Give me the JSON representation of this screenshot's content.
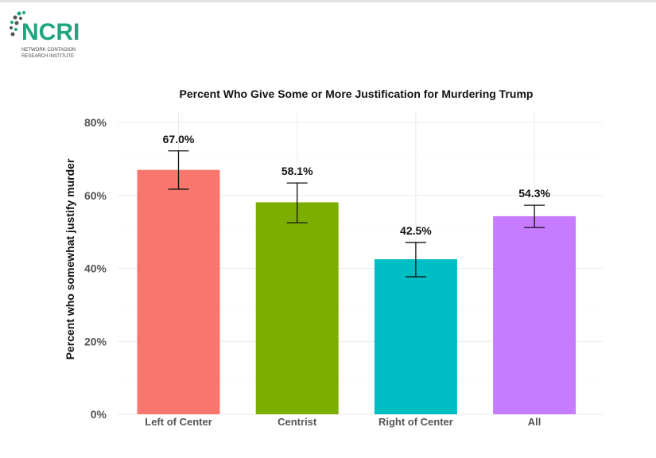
{
  "logo": {
    "text": "NCRI",
    "subtitle_line1": "NETWORK CONTAGION",
    "subtitle_line2": "RESEARCH INSTITUTE",
    "color": "#1fa57f"
  },
  "chart_data": {
    "type": "bar",
    "title": "Percent Who Give Some or More Justification for Murdering Trump",
    "xlabel": "",
    "ylabel": "Percent who somewhat justify murder",
    "categories": [
      "Left of Center",
      "Centrist",
      "Right of Center",
      "All"
    ],
    "values": [
      67.0,
      58.1,
      42.5,
      54.3
    ],
    "data_labels": [
      "67.0%",
      "58.1%",
      "42.5%",
      "54.3%"
    ],
    "error_low": [
      61.7,
      52.5,
      37.7,
      51.2
    ],
    "error_high": [
      72.2,
      63.4,
      47.1,
      57.3
    ],
    "colors": [
      "#f8766d",
      "#7cae00",
      "#00bfc4",
      "#c77cff"
    ],
    "ylim": [
      0,
      80
    ],
    "yticks": [
      0,
      20,
      40,
      60,
      80
    ],
    "ytick_labels": [
      "0%",
      "20%",
      "40%",
      "60%",
      "80%"
    ],
    "grid": true,
    "legend": "none"
  }
}
